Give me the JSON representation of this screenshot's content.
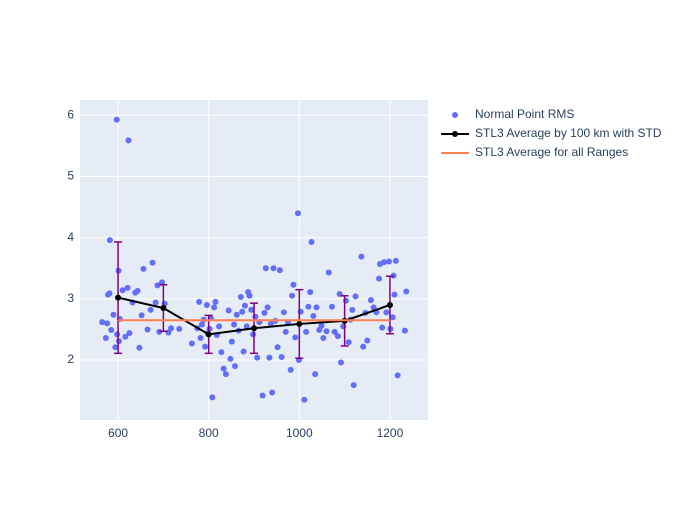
{
  "chart_data": {
    "type": "scatter",
    "xlim": [
      516,
      1284
    ],
    "ylim": [
      1.02,
      6.25
    ],
    "xticks": [
      600,
      800,
      1000,
      1200
    ],
    "yticks": [
      2,
      3,
      4,
      5,
      6
    ],
    "grid": true,
    "legend": "right",
    "plot_background": "#e5ecf6",
    "series": [
      {
        "name": "Normal Point RMS",
        "kind": "markers",
        "color": "#636efa",
        "x": [
          565,
          573,
          576,
          578,
          581,
          582,
          585,
          590,
          594,
          597,
          598,
          601,
          602,
          604,
          610,
          616,
          621,
          623,
          625,
          632,
          638,
          643,
          647,
          652,
          656,
          665,
          672,
          676,
          683,
          687,
          691,
          697,
          703,
          711,
          717,
          735,
          763,
          775,
          779,
          782,
          785,
          789,
          792,
          796,
          798,
          802,
          805,
          808,
          812,
          815,
          818,
          823,
          828,
          833,
          838,
          844,
          848,
          851,
          856,
          858,
          862,
          866,
          871,
          874,
          877,
          880,
          884,
          887,
          890,
          894,
          898,
          903,
          907,
          912,
          919,
          923,
          926,
          930,
          934,
          937,
          940,
          943,
          947,
          952,
          957,
          961,
          966,
          970,
          975,
          981,
          984,
          987,
          991,
          997,
          999,
          1003,
          1011,
          1015,
          1020,
          1024,
          1027,
          1031,
          1035,
          1038,
          1044,
          1049,
          1053,
          1060,
          1065,
          1072,
          1078,
          1085,
          1089,
          1092,
          1097,
          1103,
          1109,
          1113,
          1117,
          1120,
          1124,
          1137,
          1141,
          1146,
          1150,
          1158,
          1164,
          1170,
          1176,
          1178,
          1183,
          1187,
          1192,
          1198,
          1201,
          1206,
          1208,
          1210,
          1213,
          1217,
          1233,
          1236
        ],
        "values": [
          2.62,
          2.36,
          2.6,
          3.07,
          3.09,
          3.96,
          2.49,
          2.74,
          2.21,
          5.93,
          2.42,
          3.46,
          2.31,
          2.67,
          3.14,
          2.38,
          3.18,
          5.59,
          2.44,
          2.94,
          3.1,
          3.13,
          2.2,
          2.73,
          3.49,
          2.5,
          2.82,
          3.59,
          2.94,
          3.22,
          2.46,
          3.27,
          2.92,
          2.45,
          2.52,
          2.51,
          2.27,
          2.52,
          2.95,
          2.36,
          2.58,
          2.66,
          2.22,
          2.9,
          2.44,
          2.51,
          2.68,
          1.39,
          2.86,
          2.95,
          2.41,
          2.55,
          2.13,
          1.86,
          1.77,
          2.81,
          2.02,
          2.3,
          2.58,
          1.9,
          2.74,
          2.48,
          3.03,
          2.79,
          2.14,
          2.89,
          2.55,
          3.11,
          3.05,
          2.82,
          2.42,
          2.71,
          2.04,
          2.62,
          1.42,
          2.77,
          3.5,
          2.86,
          2.04,
          2.59,
          1.47,
          3.5,
          2.64,
          2.21,
          3.47,
          2.05,
          2.78,
          2.46,
          2.62,
          1.84,
          3.05,
          3.23,
          2.37,
          4.4,
          2.0,
          2.79,
          1.35,
          2.46,
          2.87,
          3.11,
          3.93,
          2.72,
          1.77,
          2.86,
          2.49,
          2.56,
          2.36,
          2.47,
          3.43,
          2.87,
          2.46,
          2.39,
          3.08,
          1.96,
          2.55,
          2.97,
          2.29,
          2.66,
          2.82,
          1.59,
          3.04,
          3.69,
          2.22,
          2.77,
          2.32,
          2.98,
          2.86,
          2.78,
          3.33,
          3.57,
          2.53,
          3.6,
          2.78,
          3.61,
          2.51,
          2.7,
          3.38,
          3.07,
          3.62,
          1.75,
          2.48,
          3.12
        ]
      },
      {
        "name": "STL3 Average by 100 km with STD",
        "kind": "lines+markers",
        "color": "#000000",
        "error_color": "#800080",
        "x": [
          600,
          700,
          800,
          900,
          1000,
          1100,
          1200
        ],
        "values": [
          3.02,
          2.85,
          2.42,
          2.52,
          2.59,
          2.64,
          2.9
        ],
        "error": [
          0.91,
          0.38,
          0.31,
          0.41,
          0.56,
          0.41,
          0.47
        ]
      },
      {
        "name": "STL3 Average for all Ranges",
        "kind": "lines",
        "color": "#ff7f50",
        "x": [
          600,
          1200
        ],
        "values": [
          2.65,
          2.65
        ]
      }
    ]
  }
}
